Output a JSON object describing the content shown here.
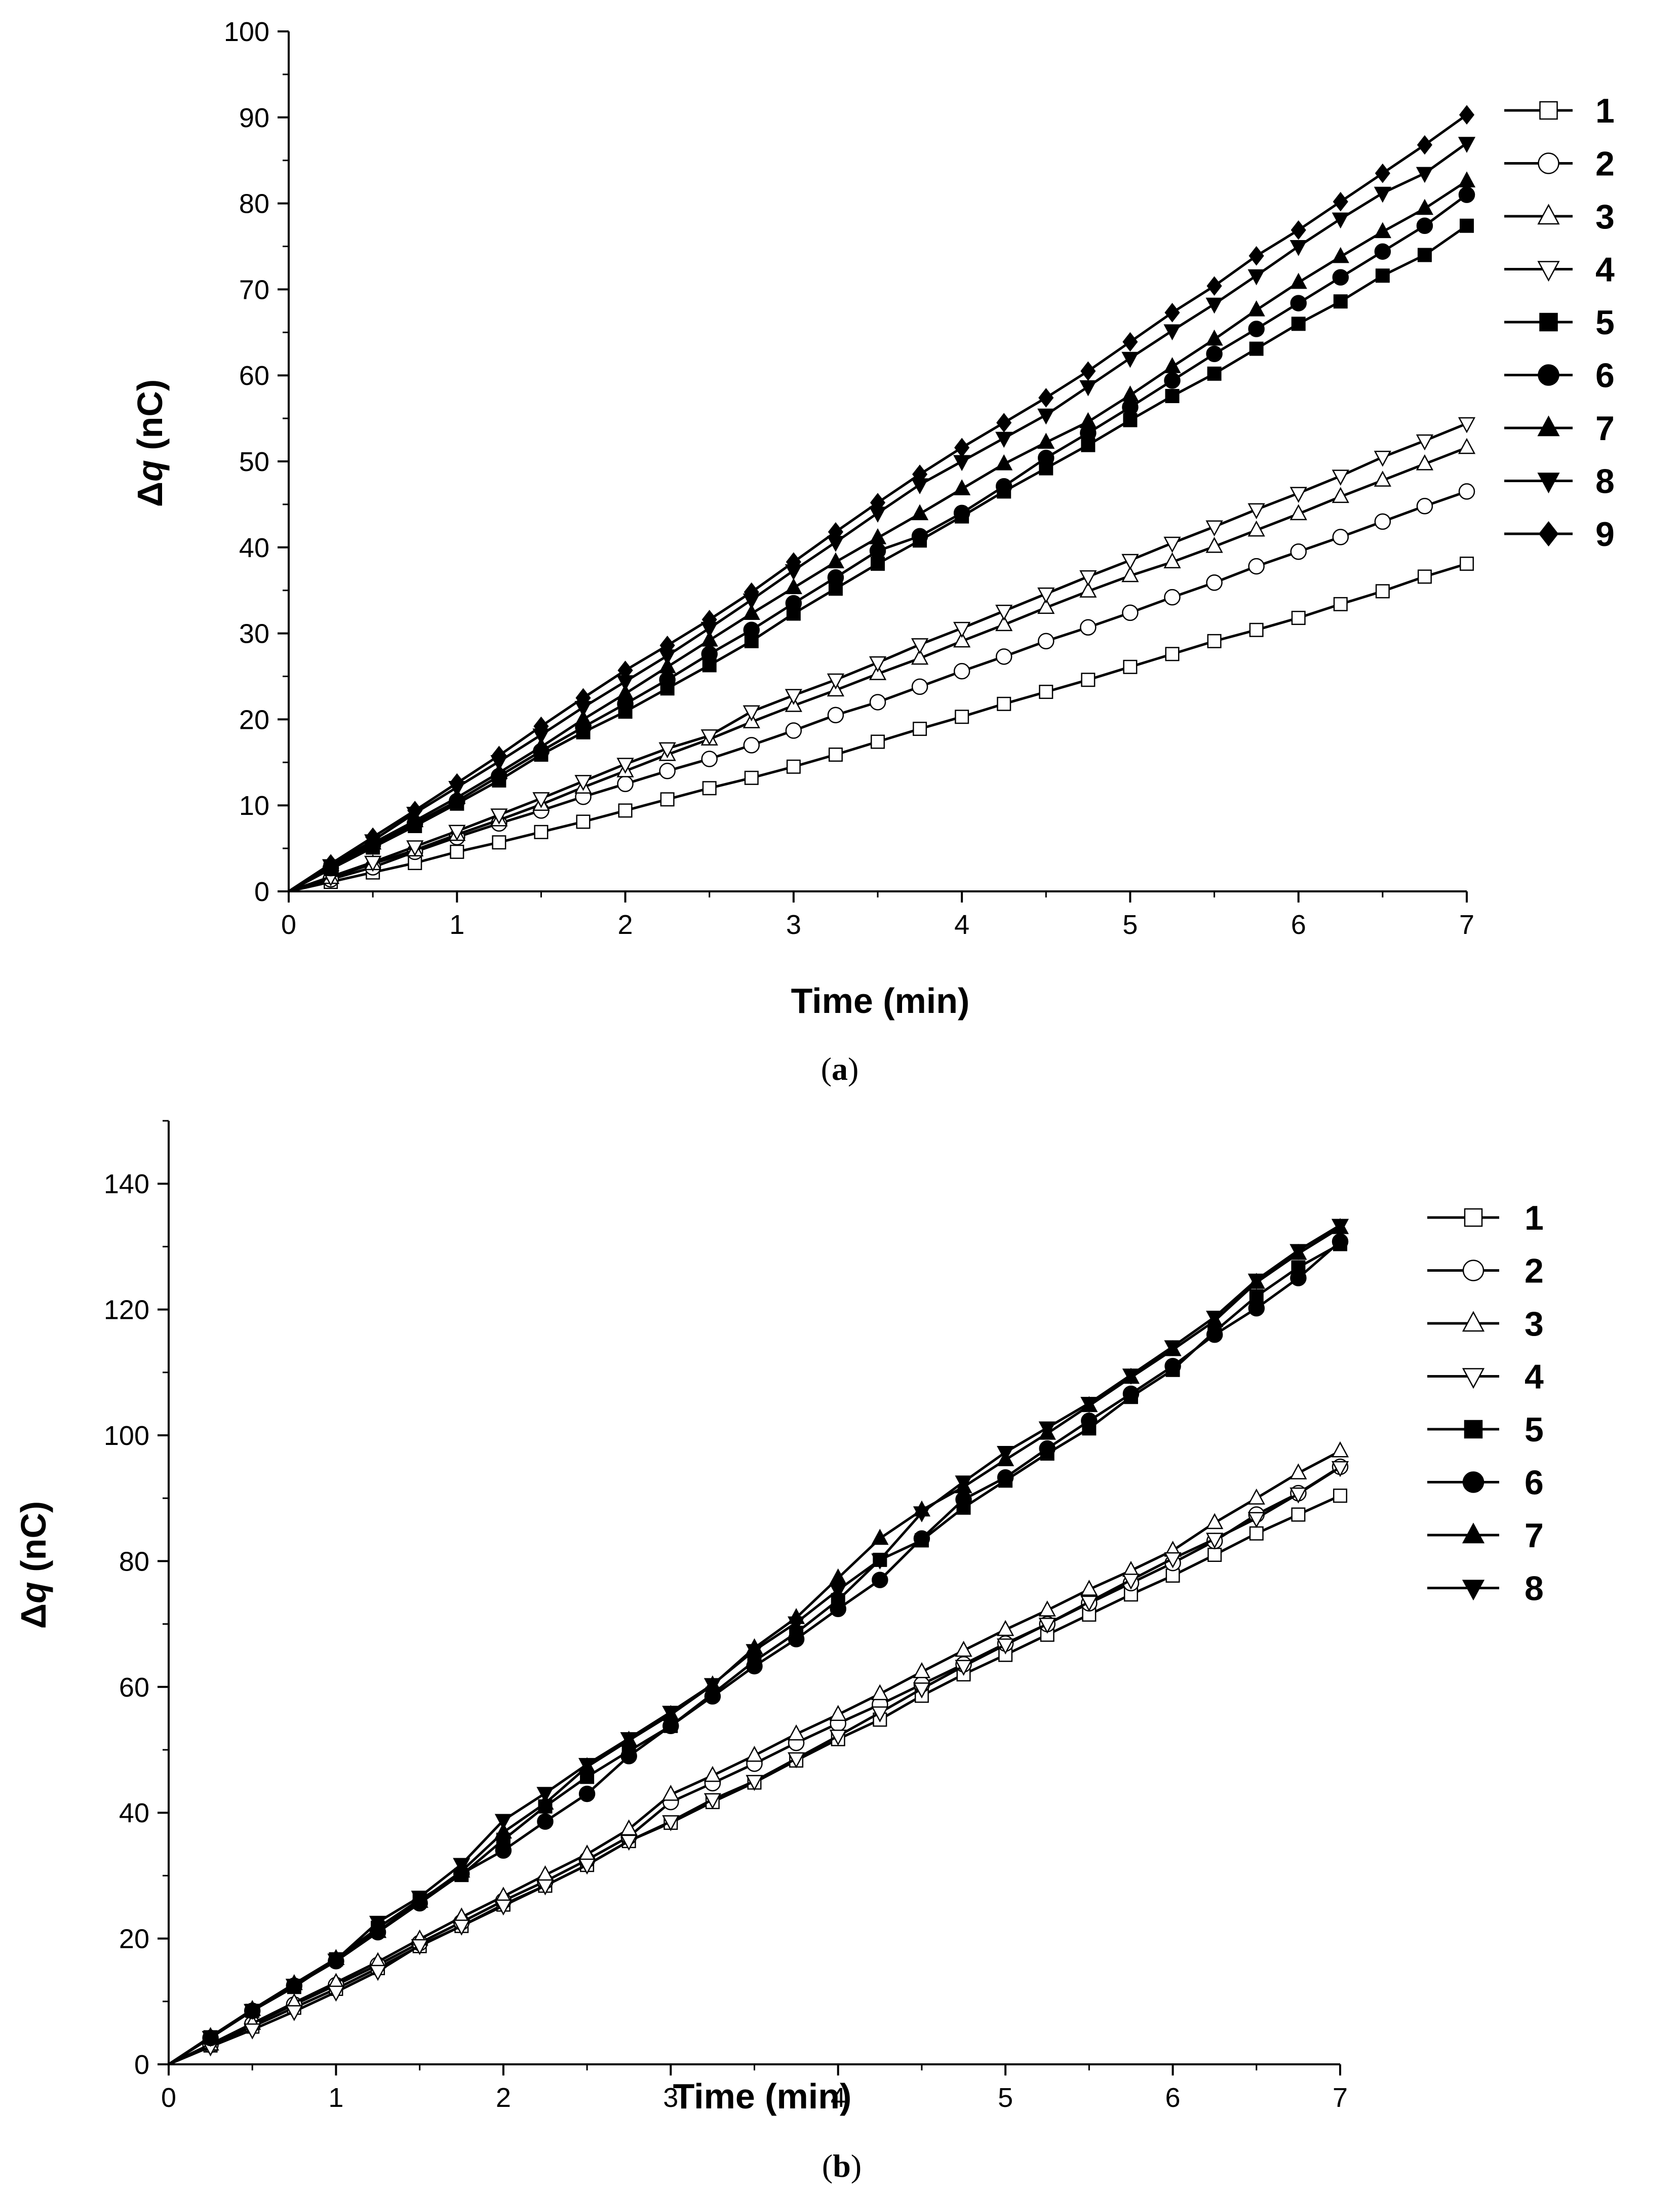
{
  "colors": {
    "line": "#000000",
    "hollow_fill": "#ffffff",
    "solid_fill": "#000000",
    "background": "#ffffff"
  },
  "chart_data": [
    {
      "panel": "a",
      "type": "line",
      "caption_prefix": "(",
      "caption_letter": "a",
      "caption_suffix": ")",
      "xlabel": "Time (min)",
      "ylabel_prefix": "Δ",
      "ylabel_var": "q",
      "ylabel_unit": " (nC)",
      "xlim": [
        0,
        7
      ],
      "ylim": [
        0,
        100
      ],
      "xticks": [
        0,
        1,
        2,
        3,
        4,
        5,
        6,
        7
      ],
      "yticks": [
        0,
        10,
        20,
        30,
        40,
        50,
        60,
        70,
        80,
        90,
        100
      ],
      "x": [
        0,
        0.25,
        0.5,
        0.75,
        1,
        1.25,
        1.5,
        1.75,
        2,
        2.25,
        2.5,
        2.75,
        3,
        3.25,
        3.5,
        3.75,
        4,
        4.25,
        4.5,
        4.75,
        5,
        5.25,
        5.5,
        5.75,
        6,
        6.25,
        6.5,
        6.75,
        7
      ],
      "series": [
        {
          "name": "1",
          "marker": "square",
          "filled": false,
          "values": [
            0,
            1.1,
            2.2,
            3.3,
            4.6,
            5.7,
            6.9,
            8.1,
            9.4,
            10.7,
            12.0,
            13.2,
            14.5,
            15.9,
            17.4,
            18.9,
            20.3,
            21.8,
            23.2,
            24.6,
            26.1,
            27.6,
            29.1,
            30.4,
            31.8,
            33.4,
            34.9,
            36.6,
            38.1
          ]
        },
        {
          "name": "2",
          "marker": "circle",
          "filled": false,
          "values": [
            0,
            1.4,
            2.8,
            4.6,
            6.3,
            7.9,
            9.4,
            11.0,
            12.5,
            14.0,
            15.4,
            17.0,
            18.7,
            20.5,
            22.0,
            23.8,
            25.6,
            27.3,
            29.1,
            30.7,
            32.4,
            34.2,
            35.9,
            37.8,
            39.5,
            41.2,
            43.0,
            44.8,
            46.5
          ]
        },
        {
          "name": "3",
          "marker": "triangle-up",
          "filled": false,
          "values": [
            0,
            1.6,
            3.2,
            4.8,
            6.6,
            8.3,
            10.1,
            12.1,
            14.0,
            15.9,
            17.7,
            19.7,
            21.6,
            23.4,
            25.3,
            27.1,
            29.1,
            31.0,
            33.0,
            34.9,
            36.7,
            38.3,
            40.1,
            42.0,
            43.9,
            45.9,
            47.8,
            49.7,
            51.6
          ]
        },
        {
          "name": "4",
          "marker": "triangle-down",
          "filled": false,
          "values": [
            0,
            1.7,
            3.4,
            5.2,
            7.0,
            8.9,
            10.8,
            12.8,
            14.8,
            16.6,
            18.1,
            20.9,
            22.8,
            24.6,
            26.6,
            28.7,
            30.6,
            32.6,
            34.6,
            36.6,
            38.5,
            40.5,
            42.4,
            44.4,
            46.3,
            48.3,
            50.5,
            52.4,
            54.4
          ]
        },
        {
          "name": "5",
          "marker": "square",
          "filled": true,
          "values": [
            0,
            2.6,
            5.1,
            7.6,
            10.2,
            12.9,
            15.9,
            18.5,
            20.9,
            23.6,
            26.3,
            29.1,
            32.3,
            35.2,
            38.1,
            40.8,
            43.6,
            46.5,
            49.2,
            51.9,
            54.8,
            57.6,
            60.2,
            63.1,
            66.0,
            68.6,
            71.6,
            74.0,
            77.4
          ]
        },
        {
          "name": "6",
          "marker": "circle",
          "filled": true,
          "values": [
            0,
            2.7,
            5.4,
            7.9,
            10.5,
            13.4,
            16.3,
            19.1,
            21.8,
            24.6,
            27.6,
            30.4,
            33.5,
            36.5,
            39.6,
            41.3,
            44.0,
            47.1,
            50.4,
            53.3,
            56.3,
            59.4,
            62.5,
            65.4,
            68.4,
            71.4,
            74.4,
            77.4,
            81.0
          ]
        },
        {
          "name": "7",
          "marker": "triangle-up",
          "filled": true,
          "values": [
            0,
            2.8,
            5.6,
            8.2,
            10.9,
            13.8,
            16.8,
            20.0,
            23.0,
            26.1,
            29.2,
            32.3,
            35.3,
            38.3,
            41.1,
            43.9,
            46.8,
            49.7,
            52.2,
            54.6,
            57.7,
            61.0,
            64.2,
            67.6,
            70.8,
            73.8,
            76.7,
            79.4,
            82.6
          ]
        },
        {
          "name": "8",
          "marker": "triangle-down",
          "filled": true,
          "values": [
            0,
            3.0,
            5.9,
            9.1,
            12.1,
            15.1,
            18.2,
            21.4,
            24.4,
            27.4,
            30.6,
            33.9,
            37.3,
            40.6,
            44.0,
            47.3,
            50.0,
            52.7,
            55.4,
            58.7,
            62.0,
            65.2,
            68.3,
            71.6,
            75.0,
            78.2,
            81.2,
            83.5,
            87.0
          ]
        },
        {
          "name": "9",
          "marker": "diamond",
          "filled": true,
          "values": [
            0,
            3.2,
            6.3,
            9.4,
            12.6,
            15.8,
            19.2,
            22.5,
            25.7,
            28.6,
            31.6,
            34.8,
            38.3,
            41.8,
            45.2,
            48.5,
            51.6,
            54.5,
            57.4,
            60.5,
            63.9,
            67.3,
            70.4,
            73.9,
            76.9,
            80.2,
            83.5,
            86.8,
            90.3
          ]
        }
      ]
    },
    {
      "panel": "b",
      "type": "line",
      "caption_prefix": "(",
      "caption_letter": "b",
      "caption_suffix": ")",
      "xlabel": "Time (min)",
      "ylabel_prefix": "Δ",
      "ylabel_var": "q",
      "ylabel_unit": " (nC)",
      "xlim": [
        0,
        7
      ],
      "ylim": [
        0,
        150
      ],
      "xticks": [
        0,
        1,
        2,
        3,
        4,
        5,
        6,
        7
      ],
      "yticks": [
        0,
        20,
        40,
        60,
        80,
        100,
        120,
        140
      ],
      "x": [
        0,
        0.25,
        0.5,
        0.75,
        1,
        1.25,
        1.5,
        1.75,
        2,
        2.25,
        2.5,
        2.75,
        3,
        3.25,
        3.5,
        3.75,
        4,
        4.25,
        4.5,
        4.75,
        5,
        5.25,
        5.5,
        5.75,
        6,
        6.25,
        6.5,
        6.75,
        7
      ],
      "series": [
        {
          "name": "1",
          "marker": "square",
          "filled": false,
          "values": [
            0,
            3.0,
            6.0,
            9.0,
            12.0,
            15.3,
            18.8,
            22.0,
            25.4,
            28.4,
            31.7,
            35.5,
            38.4,
            41.7,
            44.8,
            48.3,
            51.7,
            54.8,
            58.6,
            62.0,
            65.1,
            68.3,
            71.5,
            74.7,
            77.7,
            81.0,
            84.4,
            87.4,
            90.4
          ]
        },
        {
          "name": "2",
          "marker": "circle",
          "filled": false,
          "values": [
            0,
            3.1,
            6.4,
            9.5,
            12.6,
            15.8,
            19.3,
            22.6,
            26.0,
            29.1,
            32.5,
            36.2,
            41.7,
            44.7,
            47.8,
            51.1,
            54.2,
            57.2,
            60.4,
            63.6,
            66.9,
            70.0,
            73.3,
            76.5,
            79.7,
            83.2,
            87.4,
            90.8,
            95.0
          ]
        },
        {
          "name": "3",
          "marker": "triangle-up",
          "filled": false,
          "values": [
            0,
            3.2,
            6.5,
            9.8,
            13.0,
            16.3,
            19.9,
            23.4,
            26.7,
            30.1,
            33.4,
            37.4,
            42.9,
            45.9,
            49.1,
            52.5,
            55.6,
            58.9,
            62.4,
            65.8,
            69.1,
            72.2,
            75.5,
            78.5,
            81.7,
            86.1,
            90.0,
            94.0,
            97.5
          ]
        },
        {
          "name": "4",
          "marker": "triangle-down",
          "filled": false,
          "values": [
            0,
            2.8,
            5.5,
            8.4,
            11.5,
            14.8,
            18.9,
            22.0,
            25.2,
            28.4,
            31.7,
            35.5,
            38.6,
            42.1,
            45.0,
            48.6,
            52.2,
            55.9,
            59.7,
            63.3,
            66.7,
            70.0,
            73.5,
            77.0,
            80.4,
            83.5,
            86.8,
            90.7,
            94.9
          ]
        },
        {
          "name": "5",
          "marker": "square",
          "filled": true,
          "values": [
            0,
            4.3,
            8.5,
            12.3,
            16.7,
            21.7,
            26.2,
            30.1,
            35.7,
            41.0,
            45.7,
            49.8,
            53.8,
            58.9,
            64.1,
            68.6,
            73.8,
            80.2,
            83.3,
            88.5,
            92.8,
            97.1,
            101.1,
            106.1,
            110.4,
            116.5,
            122.1,
            126.7,
            130.4
          ]
        },
        {
          "name": "6",
          "marker": "circle",
          "filled": true,
          "values": [
            0,
            4.2,
            8.5,
            12.5,
            16.4,
            21.0,
            25.6,
            30.3,
            34.0,
            38.6,
            43.0,
            49.0,
            53.8,
            58.5,
            63.3,
            67.6,
            72.4,
            77.0,
            83.6,
            89.8,
            93.3,
            97.9,
            102.3,
            106.6,
            111.0,
            116.0,
            120.2,
            125.0,
            130.8
          ]
        },
        {
          "name": "7",
          "marker": "triangle-up",
          "filled": true,
          "values": [
            0,
            4.4,
            8.7,
            12.8,
            16.8,
            21.1,
            25.9,
            30.7,
            36.9,
            41.5,
            47.3,
            51.5,
            55.6,
            60.3,
            66.2,
            71.0,
            77.3,
            83.6,
            88.1,
            91.8,
            96.1,
            100.3,
            104.7,
            109.2,
            113.6,
            118.2,
            124.3,
            128.9,
            133.0
          ]
        },
        {
          "name": "8",
          "marker": "triangle-down",
          "filled": true,
          "values": [
            0,
            4.3,
            8.6,
            12.6,
            16.6,
            22.6,
            26.6,
            31.8,
            38.8,
            43.1,
            47.7,
            51.8,
            56.0,
            60.4,
            65.8,
            70.2,
            75.4,
            80.2,
            87.7,
            92.6,
            97.3,
            101.2,
            105.1,
            109.6,
            114.1,
            118.8,
            124.7,
            129.4,
            133.4
          ]
        }
      ]
    }
  ]
}
